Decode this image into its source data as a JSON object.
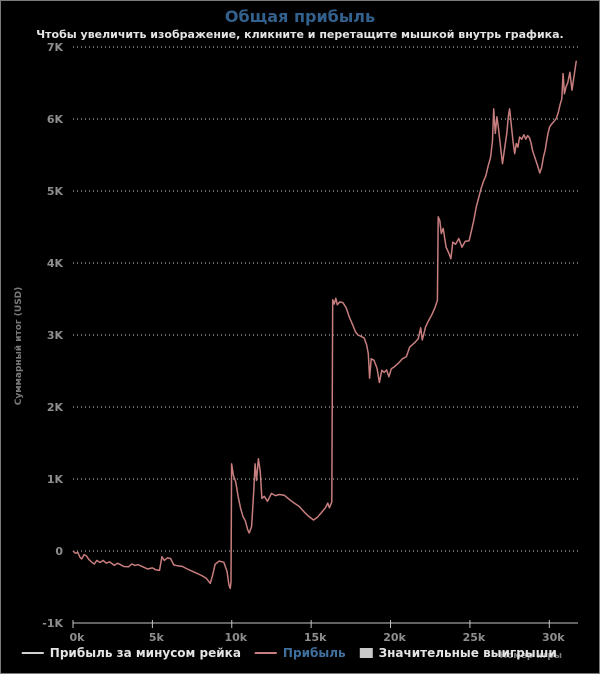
{
  "window": {
    "background": "#000000",
    "border_color": "#7b7b7b"
  },
  "header": {
    "title": "Общая прибыль",
    "title_color": "#33618e",
    "subtitle": "Чтобы увеличить изображение, кликните и перетащите мышкой внутрь графика.",
    "subtitle_color": "#e4e4e4"
  },
  "axes": {
    "y_title": "Суммарный итог (USD)",
    "x_title": "Номер игры"
  },
  "legend": {
    "items": [
      {
        "label": "Прибыль за минусом рейка",
        "swatch": "line",
        "color": "#d0d0d0",
        "label_color": "#e4e4e4"
      },
      {
        "label": "Прибыль",
        "swatch": "line",
        "color": "#c87e7e",
        "label_color": "#3f6f9c"
      },
      {
        "label": "Значительные выигрыши",
        "swatch": "box",
        "color": "#c8c8c8",
        "label_color": "#e4e4e4"
      }
    ]
  },
  "chart_data": {
    "type": "line",
    "title": "Общая прибыль",
    "subtitle": "Чтобы увеличить изображение, кликните и перетащите мышкой внутрь графика.",
    "xlabel": "Номер игры",
    "ylabel": "Суммарный итог (USD)",
    "xlim": [
      0,
      31800
    ],
    "ylim": [
      -1000,
      7000
    ],
    "grid": "horizontal-dotted",
    "legend_position": "bottom",
    "x_ticks": [
      {
        "value": 0,
        "label": "0k"
      },
      {
        "value": 5000,
        "label": "5k"
      },
      {
        "value": 10000,
        "label": "10k"
      },
      {
        "value": 15000,
        "label": "15k"
      },
      {
        "value": 20000,
        "label": "20k"
      },
      {
        "value": 25000,
        "label": "25k"
      },
      {
        "value": 30000,
        "label": "30k"
      }
    ],
    "y_ticks": [
      {
        "value": 7000,
        "label": "7K"
      },
      {
        "value": 6000,
        "label": "6K"
      },
      {
        "value": 5000,
        "label": "5K"
      },
      {
        "value": 4000,
        "label": "4K"
      },
      {
        "value": 3000,
        "label": "3K"
      },
      {
        "value": 2000,
        "label": "2K"
      },
      {
        "value": 1000,
        "label": "1K"
      },
      {
        "value": 0,
        "label": "0"
      },
      {
        "value": -1000,
        "label": "-1K"
      }
    ],
    "series": [
      {
        "name": "Прибыль",
        "color": "#c87e7e",
        "points": [
          [
            0,
            0
          ],
          [
            150,
            -30
          ],
          [
            300,
            -20
          ],
          [
            450,
            -90
          ],
          [
            550,
            -110
          ],
          [
            700,
            -50
          ],
          [
            850,
            -70
          ],
          [
            1000,
            -120
          ],
          [
            1200,
            -160
          ],
          [
            1350,
            -180
          ],
          [
            1500,
            -130
          ],
          [
            1700,
            -160
          ],
          [
            1900,
            -130
          ],
          [
            2100,
            -170
          ],
          [
            2300,
            -150
          ],
          [
            2600,
            -200
          ],
          [
            2800,
            -170
          ],
          [
            3000,
            -190
          ],
          [
            3200,
            -215
          ],
          [
            3500,
            -220
          ],
          [
            3700,
            -180
          ],
          [
            3900,
            -200
          ],
          [
            4100,
            -190
          ],
          [
            4400,
            -220
          ],
          [
            4700,
            -250
          ],
          [
            5000,
            -235
          ],
          [
            5200,
            -260
          ],
          [
            5450,
            -270
          ],
          [
            5600,
            -80
          ],
          [
            5750,
            -130
          ],
          [
            5950,
            -95
          ],
          [
            6150,
            -105
          ],
          [
            6350,
            -195
          ],
          [
            6600,
            -205
          ],
          [
            6900,
            -215
          ],
          [
            7200,
            -250
          ],
          [
            7500,
            -280
          ],
          [
            7800,
            -310
          ],
          [
            8100,
            -340
          ],
          [
            8400,
            -380
          ],
          [
            8650,
            -450
          ],
          [
            8800,
            -330
          ],
          [
            8950,
            -185
          ],
          [
            9200,
            -140
          ],
          [
            9500,
            -155
          ],
          [
            9700,
            -280
          ],
          [
            9820,
            -470
          ],
          [
            9900,
            -520
          ],
          [
            9950,
            -430
          ],
          [
            9990,
            1210
          ],
          [
            10100,
            1050
          ],
          [
            10250,
            960
          ],
          [
            10400,
            760
          ],
          [
            10550,
            600
          ],
          [
            10700,
            480
          ],
          [
            10850,
            420
          ],
          [
            11000,
            300
          ],
          [
            11100,
            250
          ],
          [
            11250,
            340
          ],
          [
            11380,
            820
          ],
          [
            11470,
            1210
          ],
          [
            11560,
            980
          ],
          [
            11680,
            1280
          ],
          [
            11790,
            1110
          ],
          [
            11900,
            730
          ],
          [
            12050,
            760
          ],
          [
            12250,
            690
          ],
          [
            12500,
            800
          ],
          [
            12750,
            770
          ],
          [
            13000,
            785
          ],
          [
            13300,
            775
          ],
          [
            13550,
            730
          ],
          [
            13900,
            670
          ],
          [
            14250,
            620
          ],
          [
            14550,
            545
          ],
          [
            14850,
            480
          ],
          [
            15150,
            430
          ],
          [
            15400,
            470
          ],
          [
            15650,
            535
          ],
          [
            15900,
            600
          ],
          [
            16050,
            665
          ],
          [
            16150,
            600
          ],
          [
            16300,
            680
          ],
          [
            16360,
            3490
          ],
          [
            16450,
            3430
          ],
          [
            16550,
            3510
          ],
          [
            16650,
            3420
          ],
          [
            16800,
            3460
          ],
          [
            17000,
            3450
          ],
          [
            17200,
            3380
          ],
          [
            17400,
            3250
          ],
          [
            17600,
            3150
          ],
          [
            17800,
            3040
          ],
          [
            17950,
            3000
          ],
          [
            18150,
            2980
          ],
          [
            18350,
            2955
          ],
          [
            18500,
            2860
          ],
          [
            18600,
            2740
          ],
          [
            18680,
            2400
          ],
          [
            18780,
            2670
          ],
          [
            18950,
            2650
          ],
          [
            19150,
            2540
          ],
          [
            19300,
            2340
          ],
          [
            19450,
            2510
          ],
          [
            19600,
            2480
          ],
          [
            19750,
            2515
          ],
          [
            19900,
            2420
          ],
          [
            20050,
            2530
          ],
          [
            20250,
            2560
          ],
          [
            20500,
            2610
          ],
          [
            20750,
            2670
          ],
          [
            21000,
            2700
          ],
          [
            21200,
            2830
          ],
          [
            21350,
            2860
          ],
          [
            21550,
            2900
          ],
          [
            21750,
            2950
          ],
          [
            21900,
            3100
          ],
          [
            22000,
            2930
          ],
          [
            22200,
            3110
          ],
          [
            22400,
            3200
          ],
          [
            22600,
            3280
          ],
          [
            22800,
            3380
          ],
          [
            22950,
            3480
          ],
          [
            23000,
            4640
          ],
          [
            23100,
            4590
          ],
          [
            23200,
            4410
          ],
          [
            23320,
            4480
          ],
          [
            23500,
            4220
          ],
          [
            23680,
            4130
          ],
          [
            23800,
            4060
          ],
          [
            23920,
            4290
          ],
          [
            24100,
            4260
          ],
          [
            24300,
            4340
          ],
          [
            24500,
            4220
          ],
          [
            24700,
            4300
          ],
          [
            24950,
            4310
          ],
          [
            25100,
            4450
          ],
          [
            25250,
            4600
          ],
          [
            25400,
            4780
          ],
          [
            25550,
            4900
          ],
          [
            25700,
            5030
          ],
          [
            25850,
            5130
          ],
          [
            26000,
            5210
          ],
          [
            26150,
            5350
          ],
          [
            26300,
            5470
          ],
          [
            26420,
            5700
          ],
          [
            26500,
            6140
          ],
          [
            26600,
            5800
          ],
          [
            26700,
            6030
          ],
          [
            26800,
            5870
          ],
          [
            26950,
            5570
          ],
          [
            27050,
            5380
          ],
          [
            27200,
            5610
          ],
          [
            27320,
            5800
          ],
          [
            27420,
            6030
          ],
          [
            27500,
            6140
          ],
          [
            27620,
            5890
          ],
          [
            27720,
            5680
          ],
          [
            27820,
            5520
          ],
          [
            27920,
            5660
          ],
          [
            28020,
            5610
          ],
          [
            28130,
            5750
          ],
          [
            28260,
            5720
          ],
          [
            28400,
            5780
          ],
          [
            28520,
            5720
          ],
          [
            28640,
            5770
          ],
          [
            28750,
            5740
          ],
          [
            28850,
            5670
          ],
          [
            28950,
            5560
          ],
          [
            29100,
            5460
          ],
          [
            29250,
            5360
          ],
          [
            29400,
            5250
          ],
          [
            29520,
            5330
          ],
          [
            29630,
            5470
          ],
          [
            29740,
            5570
          ],
          [
            29830,
            5690
          ],
          [
            29920,
            5800
          ],
          [
            30020,
            5890
          ],
          [
            30150,
            5930
          ],
          [
            30300,
            5970
          ],
          [
            30450,
            6010
          ],
          [
            30570,
            6090
          ],
          [
            30680,
            6200
          ],
          [
            30790,
            6280
          ],
          [
            30870,
            6630
          ],
          [
            30950,
            6350
          ],
          [
            31060,
            6450
          ],
          [
            31160,
            6500
          ],
          [
            31300,
            6650
          ],
          [
            31430,
            6400
          ],
          [
            31550,
            6580
          ],
          [
            31700,
            6810
          ]
        ]
      }
    ]
  }
}
